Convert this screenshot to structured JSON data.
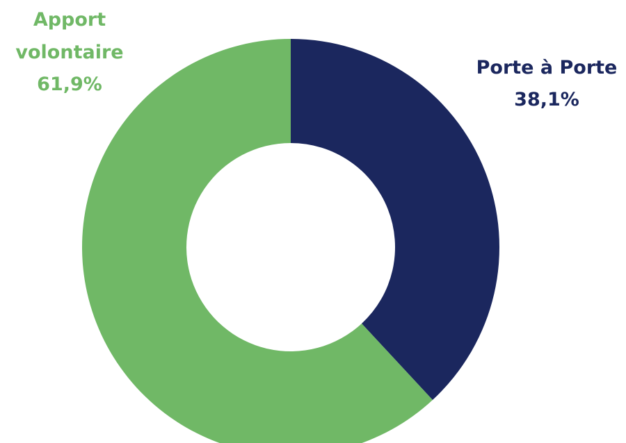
{
  "chart_data": {
    "type": "pie",
    "variant": "donut",
    "start": "top",
    "direction": "clockwise",
    "slices": [
      {
        "name": "Porte à Porte",
        "value": 38.1,
        "label": "38,1%",
        "color": "#1B275E"
      },
      {
        "name": "Apport volontaire",
        "value": 61.9,
        "label": "61,9%",
        "color": "#70B866"
      }
    ]
  }
}
